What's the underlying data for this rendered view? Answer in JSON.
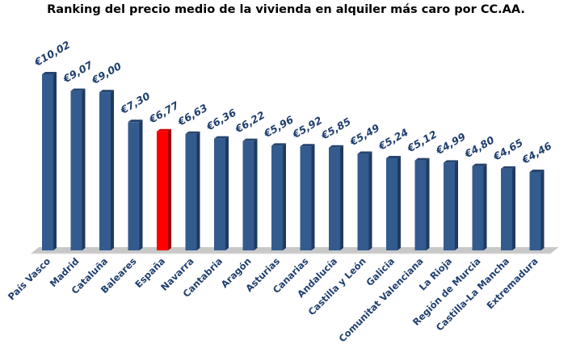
{
  "chart_data": {
    "type": "bar",
    "title": "Ranking del precio medio de la vivienda en alquiler más caro por CC.AA.",
    "categories": [
      "País Vasco",
      "Madrid",
      "Cataluña",
      "Baleares",
      "España",
      "Navarra",
      "Cantabria",
      "Aragón",
      "Asturias",
      "Canarias",
      "Andalucía",
      "Castilla y León",
      "Galicia",
      "Comunitat Valenciana",
      "La Rioja",
      "Región de Murcia",
      "Castilla-La Mancha",
      "Extremadura"
    ],
    "values": [
      10.02,
      9.07,
      9.0,
      7.3,
      6.77,
      6.63,
      6.36,
      6.22,
      5.96,
      5.92,
      5.85,
      5.49,
      5.24,
      5.12,
      4.99,
      4.8,
      4.65,
      4.46
    ],
    "value_labels": [
      "€10,02",
      "€9,07",
      "€9,00",
      "€7,30",
      "€6,77",
      "€6,63",
      "€6,36",
      "€6,22",
      "€5,96",
      "€5,92",
      "€5,85",
      "€5,49",
      "€5,24",
      "€5,12",
      "€4,99",
      "€4,80",
      "€4,65",
      "€4,46"
    ],
    "highlight_category": "España",
    "colors": {
      "bar": "#335b8e",
      "highlight": "#ff0000",
      "label": "#1f3f6e"
    },
    "ylim": [
      0,
      10.02
    ],
    "grid": false,
    "style": "3d-column"
  }
}
